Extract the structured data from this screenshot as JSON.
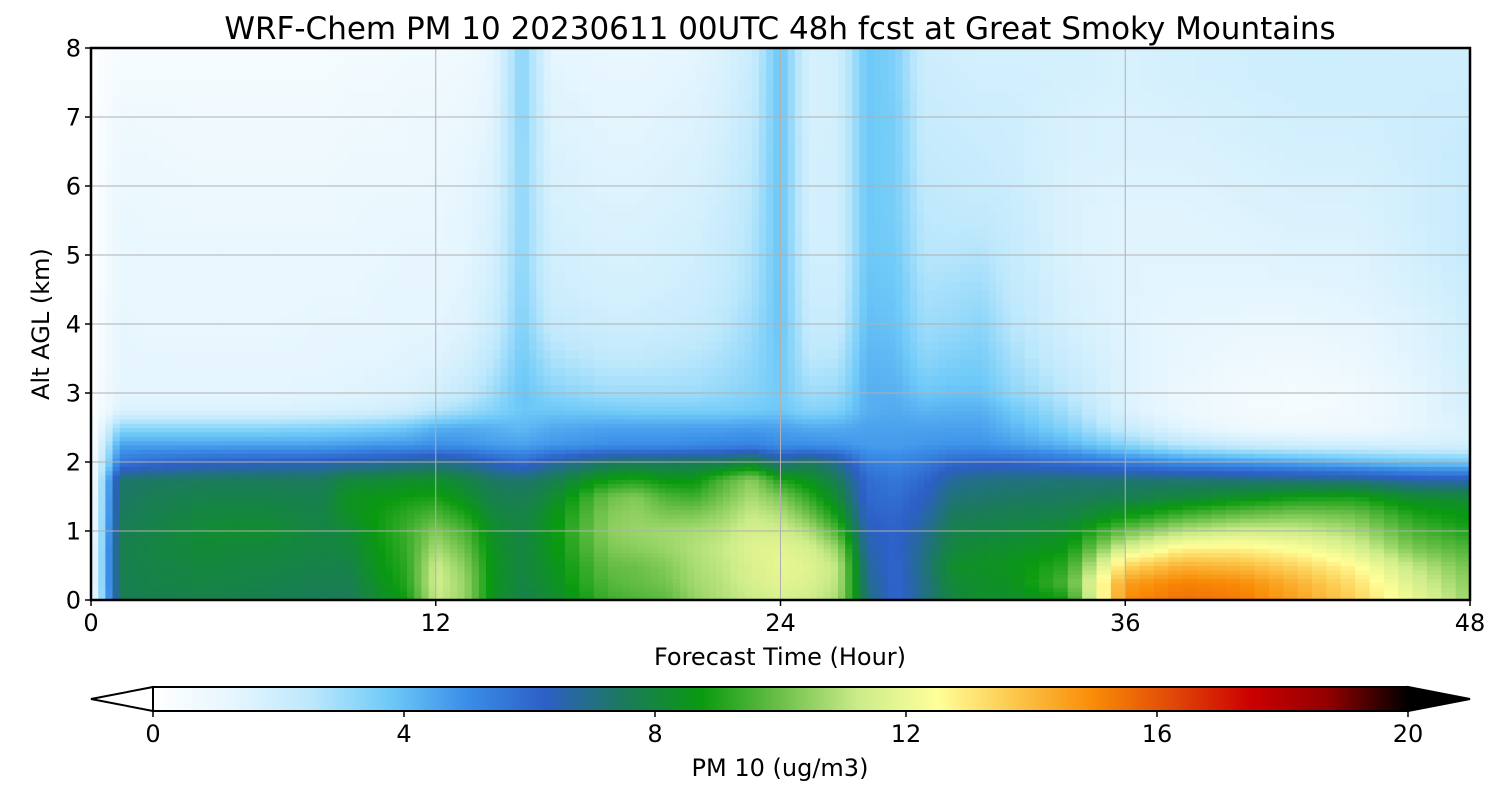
{
  "chart_data": {
    "type": "heatmap",
    "title": "WRF-Chem PM 10  20230611 00UTC 48h fcst at Great Smoky Mountains",
    "xlabel": "Forecast Time (Hour)",
    "ylabel": "Alt AGL (km)",
    "xlim": [
      0,
      48
    ],
    "ylim": [
      0,
      8
    ],
    "xticks": [
      0,
      12,
      24,
      36,
      48
    ],
    "yticks": [
      0,
      1,
      2,
      3,
      4,
      5,
      6,
      7,
      8
    ],
    "grid": true,
    "colorbar": {
      "label": "PM 10  (ug/m3)",
      "range": [
        0,
        20
      ],
      "ticks": [
        0,
        4,
        8,
        12,
        16,
        20
      ],
      "extend": "both",
      "orientation": "horizontal",
      "colors": [
        "#ffffff",
        "#e6f6fe",
        "#bde8fc",
        "#6fcaf8",
        "#3a8ee8",
        "#2d5fc6",
        "#1b7a5c",
        "#0a9a10",
        "#6cc04a",
        "#ccec8a",
        "#ffff99",
        "#fcc64a",
        "#f98b06",
        "#e04808",
        "#cc0000",
        "#900000",
        "#000000"
      ]
    },
    "x": [
      0,
      1,
      2,
      4,
      6,
      8,
      9,
      10,
      11,
      12,
      13,
      14,
      15,
      16,
      18,
      19,
      20,
      21,
      22,
      23,
      24,
      25,
      26,
      27,
      28,
      29,
      30,
      31,
      32,
      34,
      36,
      38,
      40,
      42,
      44,
      46,
      48
    ],
    "y": [
      0,
      0.25,
      0.5,
      0.75,
      1,
      1.25,
      1.5,
      1.75,
      2,
      2.25,
      2.5,
      2.75,
      3,
      3.5,
      4,
      4.5,
      5,
      5.5,
      6,
      6.5,
      7,
      7.5,
      8
    ],
    "z_note_units": "ug/m3",
    "z": [
      [
        0.4,
        7.6,
        7.7,
        7.8,
        7.7,
        7.6,
        7.5,
        8.2,
        8.8,
        11.2,
        10.6,
        8.4,
        7.8,
        8.1,
        9.4,
        9.6,
        9.8,
        10.5,
        10.9,
        11.2,
        11.5,
        11.3,
        10.8,
        7.2,
        6.0,
        7.0,
        8.0,
        8.3,
        8.3,
        8.8,
        15.0,
        15.5,
        15.3,
        14.5,
        13.5,
        12.0,
        10.6
      ],
      [
        0.5,
        7.7,
        7.8,
        7.9,
        7.8,
        7.7,
        7.7,
        8.4,
        9.1,
        11.4,
        10.6,
        8.5,
        7.9,
        8.3,
        9.7,
        9.9,
        10.1,
        10.7,
        11.0,
        11.5,
        11.8,
        11.6,
        11.0,
        7.0,
        6.0,
        7.0,
        8.1,
        8.3,
        8.4,
        9.6,
        14.6,
        15.2,
        15.0,
        14.2,
        13.2,
        11.6,
        10.4
      ],
      [
        0.5,
        7.7,
        7.8,
        8.0,
        7.9,
        7.8,
        7.8,
        8.6,
        9.2,
        11.3,
        10.4,
        8.5,
        7.9,
        8.4,
        9.9,
        10.0,
        10.3,
        10.8,
        11.1,
        11.6,
        11.9,
        11.7,
        11.1,
        6.8,
        6.0,
        7.1,
        8.3,
        8.4,
        8.5,
        9.2,
        13.4,
        14.2,
        14.0,
        13.4,
        12.6,
        11.1,
        10.1
      ],
      [
        0.5,
        7.7,
        7.9,
        8.1,
        8.0,
        7.9,
        8.0,
        8.7,
        9.3,
        10.8,
        10.0,
        8.4,
        7.9,
        8.5,
        10.2,
        10.4,
        10.6,
        10.9,
        11.2,
        11.7,
        11.8,
        11.5,
        10.6,
        6.6,
        6.1,
        7.0,
        8.0,
        8.2,
        8.3,
        8.7,
        11.6,
        12.8,
        12.8,
        12.4,
        11.6,
        10.2,
        9.6
      ],
      [
        0.4,
        7.6,
        7.8,
        8.2,
        8.3,
        7.9,
        8.1,
        8.8,
        9.4,
        10.3,
        9.6,
        8.3,
        7.9,
        8.6,
        10.4,
        10.6,
        10.7,
        10.8,
        11.0,
        11.5,
        11.4,
        10.9,
        9.6,
        6.4,
        6.1,
        6.8,
        7.8,
        7.9,
        8.0,
        8.3,
        10.0,
        11.0,
        11.4,
        11.3,
        10.8,
        9.6,
        9.0
      ],
      [
        0.3,
        7.5,
        7.7,
        8.0,
        8.0,
        7.8,
        8.4,
        8.8,
        9.2,
        9.6,
        9.0,
        8.0,
        7.8,
        8.4,
        10.3,
        10.5,
        10.2,
        10.2,
        10.6,
        11.2,
        10.9,
        10.0,
        8.7,
        6.2,
        6.0,
        6.5,
        7.5,
        7.6,
        7.7,
        7.8,
        8.6,
        9.4,
        9.9,
        10.2,
        10.0,
        9.0,
        8.6
      ],
      [
        0.3,
        7.4,
        7.6,
        7.8,
        7.8,
        7.7,
        8.5,
        8.6,
        8.8,
        8.9,
        8.4,
        7.7,
        7.6,
        8.1,
        10.0,
        10.3,
        9.6,
        9.4,
        10.1,
        10.8,
        10.2,
        9.2,
        8.1,
        6.0,
        5.8,
        6.3,
        7.2,
        7.3,
        7.4,
        7.5,
        7.7,
        8.0,
        8.4,
        8.8,
        8.9,
        8.2,
        8.1
      ],
      [
        0.2,
        7.3,
        7.4,
        7.5,
        7.5,
        7.5,
        8.0,
        8.1,
        8.2,
        8.3,
        7.9,
        7.4,
        7.3,
        7.6,
        8.8,
        9.0,
        8.6,
        8.6,
        9.6,
        10.4,
        9.0,
        8.4,
        7.6,
        5.9,
        5.6,
        6.0,
        6.8,
        7.0,
        7.1,
        7.2,
        7.2,
        7.2,
        7.1,
        7.0,
        6.9,
        6.5,
        6.4
      ],
      [
        0.2,
        5.6,
        5.9,
        6.2,
        6.3,
        6.4,
        6.6,
        6.7,
        6.9,
        7.0,
        6.8,
        6.3,
        5.9,
        6.6,
        7.4,
        7.5,
        7.5,
        7.6,
        7.6,
        8.0,
        7.0,
        7.5,
        6.9,
        5.4,
        5.2,
        5.5,
        6.0,
        6.1,
        6.1,
        5.8,
        5.4,
        5.0,
        4.8,
        4.5,
        4.2,
        3.9,
        3.8
      ],
      [
        0.1,
        4.6,
        4.6,
        4.6,
        4.6,
        4.6,
        4.7,
        4.8,
        4.8,
        5.0,
        4.9,
        4.7,
        4.6,
        4.8,
        5.0,
        5.0,
        5.0,
        5.1,
        5.2,
        5.3,
        5.0,
        5.0,
        4.9,
        4.7,
        4.7,
        4.8,
        4.9,
        4.9,
        4.7,
        4.2,
        3.4,
        2.6,
        2.2,
        2.0,
        1.9,
        1.8,
        1.8
      ],
      [
        0.1,
        3.3,
        3.3,
        3.3,
        3.3,
        3.4,
        3.5,
        3.6,
        3.8,
        4.3,
        4.4,
        4.3,
        4.1,
        4.4,
        4.6,
        4.6,
        4.6,
        4.6,
        4.6,
        4.7,
        4.6,
        4.4,
        4.4,
        4.6,
        4.6,
        4.6,
        4.6,
        4.6,
        4.2,
        3.4,
        2.2,
        1.4,
        0.9,
        0.8,
        0.8,
        1.2,
        1.6
      ],
      [
        0.1,
        1.6,
        1.6,
        1.6,
        1.6,
        1.7,
        1.8,
        1.9,
        2.1,
        2.6,
        3.0,
        3.4,
        3.8,
        3.8,
        3.7,
        3.6,
        3.6,
        3.6,
        3.6,
        3.7,
        3.8,
        3.4,
        3.5,
        4.3,
        4.4,
        4.2,
        4.3,
        4.3,
        3.8,
        2.9,
        1.6,
        1.0,
        0.6,
        0.5,
        0.7,
        1.2,
        1.8
      ],
      [
        0.1,
        1.3,
        1.3,
        1.3,
        1.3,
        1.4,
        1.4,
        1.5,
        1.6,
        1.9,
        2.3,
        3.0,
        3.9,
        3.4,
        3.0,
        3.0,
        3.0,
        3.0,
        3.2,
        3.4,
        3.7,
        3.0,
        3.1,
        4.3,
        4.3,
        3.8,
        3.9,
        3.9,
        3.3,
        2.5,
        1.5,
        1.0,
        0.6,
        0.5,
        0.7,
        1.2,
        1.8
      ],
      [
        0.1,
        1.2,
        1.2,
        1.2,
        1.2,
        1.2,
        1.3,
        1.3,
        1.4,
        1.5,
        1.8,
        2.5,
        3.7,
        2.8,
        2.4,
        2.4,
        2.5,
        2.6,
        2.8,
        3.2,
        3.8,
        2.5,
        2.6,
        4.2,
        4.1,
        3.3,
        3.5,
        3.6,
        2.9,
        2.1,
        1.5,
        1.1,
        0.9,
        0.8,
        1.0,
        1.4,
        1.9
      ],
      [
        0.1,
        1.2,
        1.1,
        1.1,
        1.1,
        1.2,
        1.2,
        1.2,
        1.3,
        1.3,
        1.5,
        2.1,
        3.5,
        2.3,
        2.0,
        2.0,
        2.1,
        2.2,
        2.5,
        3.0,
        3.9,
        2.2,
        2.2,
        4.0,
        3.9,
        3.0,
        3.1,
        3.3,
        2.6,
        1.8,
        1.4,
        1.2,
        1.1,
        1.1,
        1.2,
        1.5,
        2.0
      ],
      [
        0.1,
        1.1,
        1.1,
        1.1,
        1.1,
        1.1,
        1.1,
        1.2,
        1.2,
        1.2,
        1.4,
        1.9,
        3.4,
        2.0,
        1.8,
        1.8,
        1.9,
        2.0,
        2.3,
        2.8,
        3.9,
        2.0,
        2.0,
        3.9,
        3.8,
        2.8,
        2.9,
        3.0,
        2.4,
        1.7,
        1.4,
        1.3,
        1.3,
        1.3,
        1.4,
        1.7,
        2.1
      ],
      [
        0.1,
        1.1,
        1.1,
        1.1,
        1.1,
        1.1,
        1.1,
        1.1,
        1.2,
        1.2,
        1.3,
        1.8,
        3.3,
        1.9,
        1.7,
        1.7,
        1.8,
        1.9,
        2.2,
        2.7,
        3.9,
        1.9,
        1.9,
        3.8,
        3.7,
        2.6,
        2.6,
        2.7,
        2.3,
        1.6,
        1.4,
        1.4,
        1.4,
        1.5,
        1.5,
        1.8,
        2.2
      ],
      [
        0.1,
        1.1,
        1.0,
        1.0,
        1.0,
        1.0,
        1.0,
        1.1,
        1.1,
        1.1,
        1.3,
        1.7,
        3.3,
        1.8,
        1.6,
        1.6,
        1.7,
        1.8,
        2.1,
        2.6,
        3.9,
        1.8,
        1.9,
        3.8,
        3.6,
        2.5,
        2.4,
        2.4,
        2.2,
        1.6,
        1.4,
        1.4,
        1.5,
        1.6,
        1.6,
        1.9,
        2.2
      ],
      [
        0.1,
        1.0,
        1.0,
        0.9,
        0.9,
        0.9,
        1.0,
        1.0,
        1.0,
        1.1,
        1.2,
        1.6,
        3.3,
        1.7,
        1.5,
        1.5,
        1.6,
        1.7,
        2.0,
        2.5,
        3.9,
        1.8,
        1.9,
        3.8,
        3.6,
        2.4,
        2.3,
        2.2,
        2.1,
        1.6,
        1.5,
        1.5,
        1.6,
        1.7,
        1.7,
        1.9,
        2.2
      ],
      [
        0.1,
        0.9,
        0.9,
        0.8,
        0.8,
        0.8,
        0.9,
        0.9,
        0.9,
        1.0,
        1.1,
        1.5,
        3.3,
        1.6,
        1.4,
        1.4,
        1.5,
        1.6,
        1.9,
        2.4,
        3.9,
        1.8,
        1.9,
        3.8,
        3.6,
        2.3,
        2.2,
        2.1,
        2.0,
        1.7,
        1.6,
        1.6,
        1.7,
        1.8,
        1.8,
        2.0,
        2.2
      ],
      [
        0.1,
        0.8,
        0.8,
        0.7,
        0.7,
        0.7,
        0.8,
        0.8,
        0.9,
        0.9,
        1.0,
        1.4,
        3.4,
        1.5,
        1.3,
        1.3,
        1.4,
        1.5,
        1.8,
        2.3,
        3.9,
        1.7,
        1.9,
        3.8,
        3.6,
        2.2,
        2.1,
        2.0,
        2.0,
        1.7,
        1.6,
        1.7,
        1.8,
        1.9,
        1.9,
        2.0,
        2.1
      ],
      [
        0.1,
        0.6,
        0.6,
        0.6,
        0.6,
        0.6,
        0.7,
        0.7,
        0.8,
        0.8,
        0.9,
        1.3,
        3.4,
        1.4,
        1.2,
        1.2,
        1.3,
        1.4,
        1.7,
        2.2,
        3.9,
        1.7,
        1.9,
        3.8,
        3.5,
        2.1,
        2.0,
        1.9,
        1.9,
        1.8,
        1.7,
        1.8,
        1.9,
        2.0,
        2.0,
        2.0,
        2.0
      ],
      [
        0.1,
        0.5,
        0.5,
        0.5,
        0.5,
        0.5,
        0.6,
        0.6,
        0.7,
        0.7,
        0.8,
        1.2,
        3.4,
        1.3,
        1.1,
        1.1,
        1.2,
        1.3,
        1.6,
        2.1,
        3.9,
        1.7,
        1.9,
        3.8,
        3.5,
        2.0,
        1.9,
        1.8,
        1.8,
        1.8,
        1.7,
        1.8,
        1.9,
        2.0,
        2.0,
        1.9,
        1.9
      ]
    ]
  }
}
